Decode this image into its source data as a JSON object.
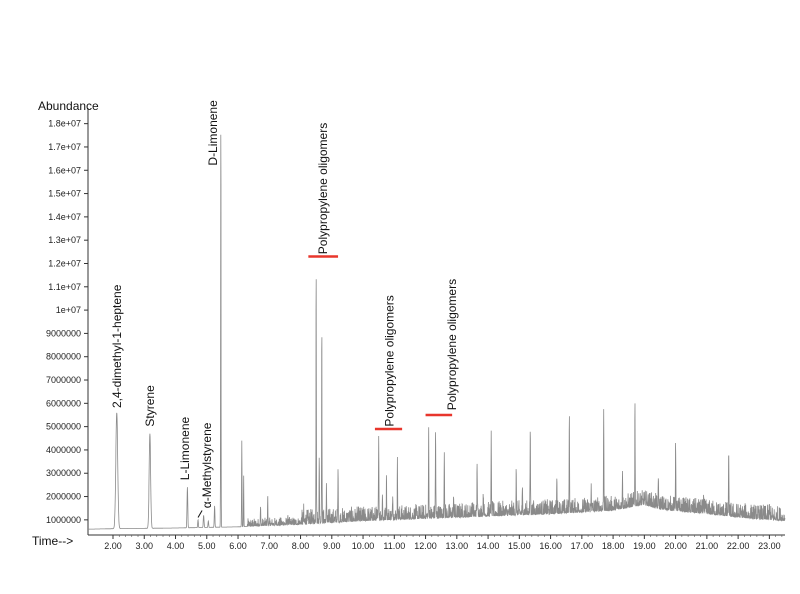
{
  "chart_data": {
    "type": "line",
    "title": "",
    "ylabel": "Abundance",
    "xlabel": "Time-->",
    "xlim": [
      1.2,
      23.5
    ],
    "ylim": [
      350000,
      18500000
    ],
    "y_ticks": [
      "1000000",
      "2000000",
      "3000000",
      "4000000",
      "5000000",
      "6000000",
      "7000000",
      "8000000",
      "9000000",
      "1e+07",
      "1.1e+07",
      "1.2e+07",
      "1.3e+07",
      "1.4e+07",
      "1.5e+07",
      "1.6e+07",
      "1.7e+07",
      "1.8e+07"
    ],
    "y_tick_values": [
      1000000,
      2000000,
      3000000,
      4000000,
      5000000,
      6000000,
      7000000,
      8000000,
      9000000,
      10000000,
      11000000,
      12000000,
      13000000,
      14000000,
      15000000,
      16000000,
      17000000,
      18000000
    ],
    "x_ticks": [
      "2.00",
      "3.00",
      "4.00",
      "5.00",
      "6.00",
      "7.00",
      "8.00",
      "9.00",
      "10.00",
      "11.00",
      "12.00",
      "13.00",
      "14.00",
      "15.00",
      "16.00",
      "17.00",
      "18.00",
      "19.00",
      "20.00",
      "21.00",
      "22.00",
      "23.00"
    ],
    "x_tick_values": [
      2,
      3,
      4,
      5,
      6,
      7,
      8,
      9,
      10,
      11,
      12,
      13,
      14,
      15,
      16,
      17,
      18,
      19,
      20,
      21,
      22,
      23
    ],
    "series": [
      {
        "color": "#8a8a8a",
        "baseline": [
          [
            1.2,
            600000
          ],
          [
            2.0,
            620000
          ],
          [
            4.0,
            650000
          ],
          [
            6.0,
            700000
          ],
          [
            8.0,
            800000
          ],
          [
            10.0,
            950000
          ],
          [
            12.0,
            1050000
          ],
          [
            14.0,
            1150000
          ],
          [
            16.0,
            1250000
          ],
          [
            18.0,
            1400000
          ],
          [
            19.0,
            1650000
          ],
          [
            19.5,
            1450000
          ],
          [
            21.0,
            1250000
          ],
          [
            22.0,
            1100000
          ],
          [
            23.0,
            1000000
          ],
          [
            23.5,
            950000
          ]
        ],
        "peaks": [
          {
            "rt": 2.12,
            "height": 5600000,
            "width": 0.09
          },
          {
            "rt": 3.18,
            "height": 4700000,
            "width": 0.07
          },
          {
            "rt": 4.38,
            "height": 2400000,
            "width": 0.035
          },
          {
            "rt": 4.72,
            "height": 1000000,
            "width": 0.03
          },
          {
            "rt": 4.9,
            "height": 1200000,
            "width": 0.035
          },
          {
            "rt": 5.05,
            "height": 950000,
            "width": 0.03
          },
          {
            "rt": 5.25,
            "height": 1600000,
            "width": 0.03
          },
          {
            "rt": 5.45,
            "height": 18300000,
            "width": 0.02
          },
          {
            "rt": 6.12,
            "height": 4400000,
            "width": 0.02
          },
          {
            "rt": 6.18,
            "height": 2900000,
            "width": 0.02
          },
          {
            "rt": 6.72,
            "height": 1500000,
            "width": 0.02
          },
          {
            "rt": 6.95,
            "height": 2000000,
            "width": 0.02
          },
          {
            "rt": 7.6,
            "height": 900000,
            "width": 0.02
          },
          {
            "rt": 8.1,
            "height": 1100000,
            "width": 0.02
          },
          {
            "rt": 8.5,
            "height": 11800000,
            "width": 0.02
          },
          {
            "rt": 8.6,
            "height": 3600000,
            "width": 0.02
          },
          {
            "rt": 8.68,
            "height": 9200000,
            "width": 0.02
          },
          {
            "rt": 8.83,
            "height": 2400000,
            "width": 0.02
          },
          {
            "rt": 9.2,
            "height": 3000000,
            "width": 0.02
          },
          {
            "rt": 9.55,
            "height": 1200000,
            "width": 0.02
          },
          {
            "rt": 10.5,
            "height": 4600000,
            "width": 0.02
          },
          {
            "rt": 10.62,
            "height": 2000000,
            "width": 0.02
          },
          {
            "rt": 10.75,
            "height": 2700000,
            "width": 0.02
          },
          {
            "rt": 10.95,
            "height": 2000000,
            "width": 0.02
          },
          {
            "rt": 11.1,
            "height": 3200000,
            "width": 0.02
          },
          {
            "rt": 12.1,
            "height": 5100000,
            "width": 0.02
          },
          {
            "rt": 12.32,
            "height": 4800000,
            "width": 0.02
          },
          {
            "rt": 12.6,
            "height": 3900000,
            "width": 0.02
          },
          {
            "rt": 12.9,
            "height": 1800000,
            "width": 0.02
          },
          {
            "rt": 13.5,
            "height": 1600000,
            "width": 0.02
          },
          {
            "rt": 13.65,
            "height": 3400000,
            "width": 0.02
          },
          {
            "rt": 13.85,
            "height": 2000000,
            "width": 0.02
          },
          {
            "rt": 14.1,
            "height": 4300000,
            "width": 0.02
          },
          {
            "rt": 14.9,
            "height": 2900000,
            "width": 0.02
          },
          {
            "rt": 15.1,
            "height": 2100000,
            "width": 0.02
          },
          {
            "rt": 15.35,
            "height": 4900000,
            "width": 0.02
          },
          {
            "rt": 16.2,
            "height": 2700000,
            "width": 0.02
          },
          {
            "rt": 16.6,
            "height": 5300000,
            "width": 0.02
          },
          {
            "rt": 17.3,
            "height": 2500000,
            "width": 0.02
          },
          {
            "rt": 17.7,
            "height": 5700000,
            "width": 0.02
          },
          {
            "rt": 18.3,
            "height": 3000000,
            "width": 0.02
          },
          {
            "rt": 18.7,
            "height": 6000000,
            "width": 0.02
          },
          {
            "rt": 19.45,
            "height": 2600000,
            "width": 0.02
          },
          {
            "rt": 20.0,
            "height": 4400000,
            "width": 0.02
          },
          {
            "rt": 20.9,
            "height": 2000000,
            "width": 0.02
          },
          {
            "rt": 21.7,
            "height": 3800000,
            "width": 0.02
          },
          {
            "rt": 23.0,
            "height": 1600000,
            "width": 0.02
          }
        ]
      }
    ],
    "annotations": [
      {
        "label": "2,4-dimethyl-1-heptene",
        "x": 2.12,
        "y": 5800000,
        "rotate": true
      },
      {
        "label": "Styrene",
        "x": 3.18,
        "y": 5000000,
        "rotate": true
      },
      {
        "label": "L-Limonene",
        "x": 4.3,
        "y": 2700000,
        "rotate": true
      },
      {
        "label": "α-Methylstyrene",
        "x": 5.0,
        "y": 1500000,
        "rotate": true
      },
      {
        "label": "D-Limonene",
        "x": 5.2,
        "y": 16200000,
        "rotate": true
      },
      {
        "label": "Polypropylene oligomers",
        "x": 8.72,
        "y": 12400000,
        "rotate": true
      },
      {
        "label": "Polypropylene oligomers",
        "x": 10.85,
        "y": 5000000,
        "rotate": true
      },
      {
        "label": "Polypropylene oligomers",
        "x": 12.85,
        "y": 5700000,
        "rotate": true
      }
    ],
    "marker_bars": [
      {
        "x0": 8.25,
        "x1": 9.2,
        "y": 12300000,
        "color": "#e8362c"
      },
      {
        "x0": 10.38,
        "x1": 11.25,
        "y": 4900000,
        "color": "#e8362c"
      },
      {
        "x0": 12.0,
        "x1": 12.85,
        "y": 5500000,
        "color": "#e8362c"
      }
    ],
    "leader_line": {
      "x0": 4.72,
      "y0": 1100000,
      "x1": 4.85,
      "y1": 1400000
    }
  }
}
